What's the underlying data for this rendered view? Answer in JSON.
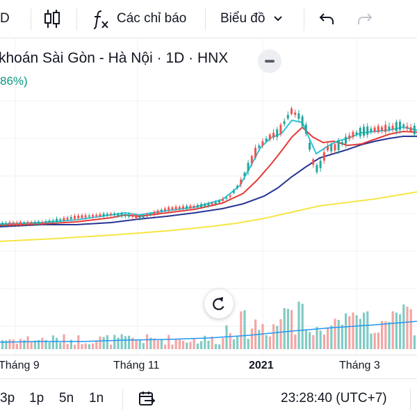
{
  "toolbar": {
    "symbol_fragment": "D",
    "indicators_label": "Các chỉ báo",
    "chart_type_label": "Biểu đồ"
  },
  "legend": {
    "title": "khoán Sài Gòn - Hà Nội · 1D · HNX",
    "change_pct": "86%)"
  },
  "time_axis": {
    "labels": [
      {
        "text": "Tháng 9",
        "bold": false
      },
      {
        "text": "Tháng 11",
        "bold": false
      },
      {
        "text": "2021",
        "bold": true
      },
      {
        "text": "Tháng 3",
        "bold": false
      }
    ]
  },
  "bottom_bar": {
    "intervals": [
      "3p",
      "1p",
      "5n",
      "1n"
    ],
    "clock": "23:28:40 (UTC+7)"
  },
  "colors": {
    "up": "#26a69a",
    "down": "#ef5350",
    "ma_fast": "#26c6da",
    "ma_mid": "#e53935",
    "ma_slow": "#283593",
    "ma_long": "#f5e642",
    "volume_up": "#80cbc4",
    "volume_down": "#f4a6a4",
    "volume_ma": "#2196f3"
  }
}
